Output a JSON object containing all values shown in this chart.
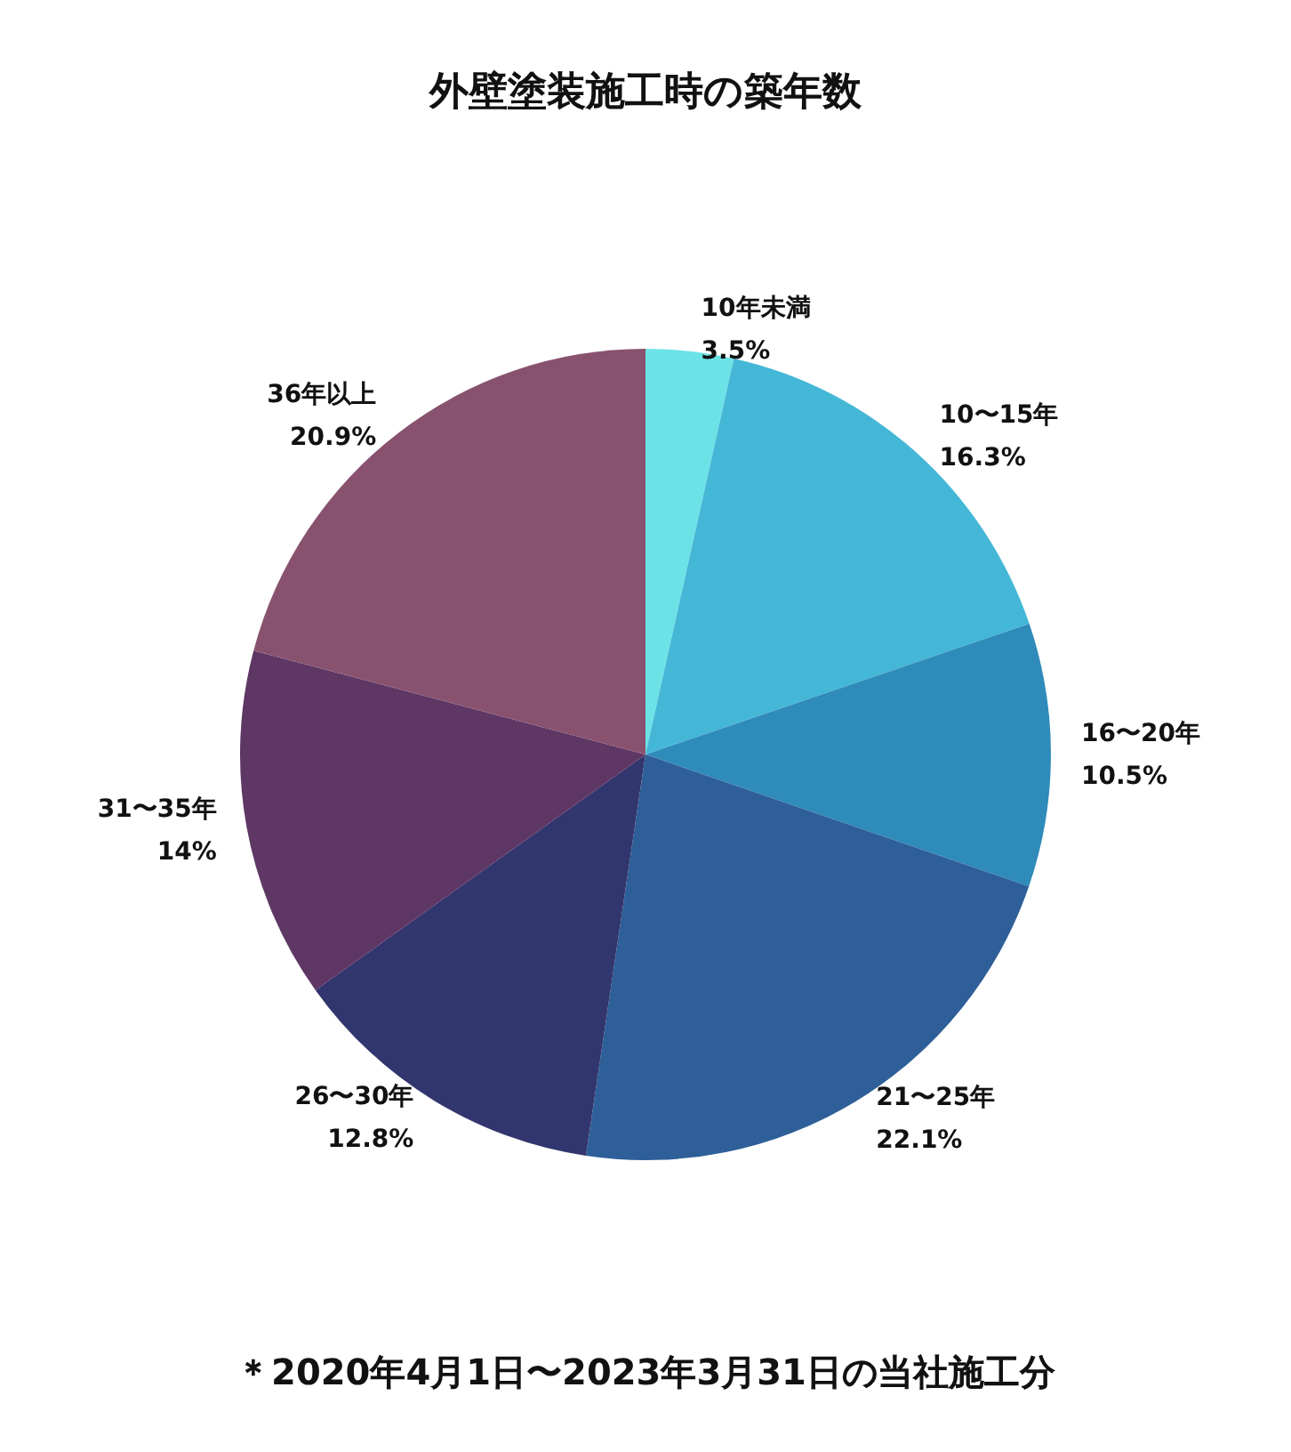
{
  "chart_data": {
    "type": "pie",
    "title": "外壁塗装施工時の築年数",
    "categories": [
      "10年未満",
      "10〜15年",
      "16〜20年",
      "21〜25年",
      "26〜30年",
      "31〜35年",
      "36年以上"
    ],
    "values": [
      3.5,
      16.3,
      10.5,
      22.1,
      12.8,
      14,
      20.9
    ],
    "colors": [
      "#6be3e6",
      "#45b7d6",
      "#2f8bba",
      "#2e5f98",
      "#32366e",
      "#5e3765",
      "#88526f"
    ],
    "value_labels": [
      "3.5%",
      "16.3%",
      "10.5%",
      "22.1%",
      "12.8%",
      "14%",
      "20.9%"
    ],
    "annotations": [
      "＊2020年4月1日〜2023年3月31日の当社施工分"
    ]
  }
}
